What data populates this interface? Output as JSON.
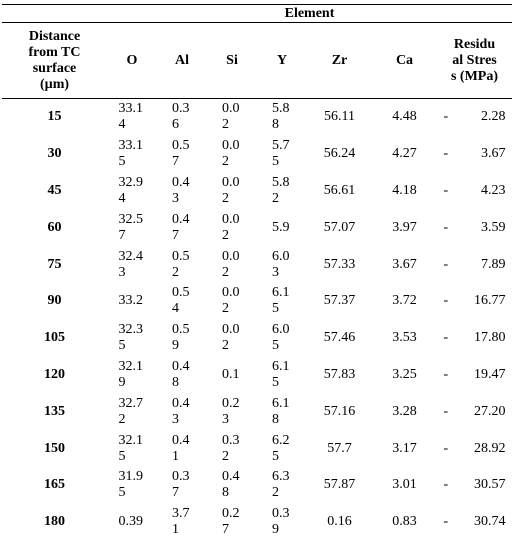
{
  "table": {
    "group_header": "Element",
    "headers": [
      "Distance from TC surface (µm)",
      "O",
      "Al",
      "Si",
      "Y",
      "Zr",
      "Ca",
      "Residual Stress (MPa)"
    ],
    "rows": [
      [
        "15",
        "33.14",
        "0.36",
        "0.02",
        "5.88",
        "56.11",
        "4.48",
        "- 2.28"
      ],
      [
        "30",
        "33.15",
        "0.57",
        "0.02",
        "5.75",
        "56.24",
        "4.27",
        "- 3.67"
      ],
      [
        "45",
        "32.94",
        "0.43",
        "0.02",
        "5.82",
        "56.61",
        "4.18",
        "- 4.23"
      ],
      [
        "60",
        "32.57",
        "0.47",
        "0.02",
        "5.9",
        "57.07",
        "3.97",
        "- 3.59"
      ],
      [
        "75",
        "32.43",
        "0.52",
        "0.02",
        "6.03",
        "57.33",
        "3.67",
        "- 7.89"
      ],
      [
        "90",
        "33.2",
        "0.54",
        "0.02",
        "6.15",
        "57.37",
        "3.72",
        "- 16.77"
      ],
      [
        "105",
        "32.35",
        "0.59",
        "0.02",
        "6.05",
        "57.46",
        "3.53",
        "- 17.80"
      ],
      [
        "120",
        "32.19",
        "0.48",
        "0.1",
        "6.15",
        "57.83",
        "3.25",
        "- 19.47"
      ],
      [
        "135",
        "32.72",
        "0.43",
        "0.23",
        "6.18",
        "57.16",
        "3.28",
        "- 27.20"
      ],
      [
        "150",
        "32.15",
        "0.41",
        "0.32",
        "6.25",
        "57.7",
        "3.17",
        "- 28.92"
      ],
      [
        "165",
        "31.95",
        "0.37",
        "0.48",
        "6.32",
        "57.87",
        "3.01",
        "- 30.57"
      ],
      [
        "180",
        "0.39",
        "3.71",
        "0.27",
        "0.39",
        "0.16",
        "0.83",
        "- 30.74"
      ]
    ]
  }
}
